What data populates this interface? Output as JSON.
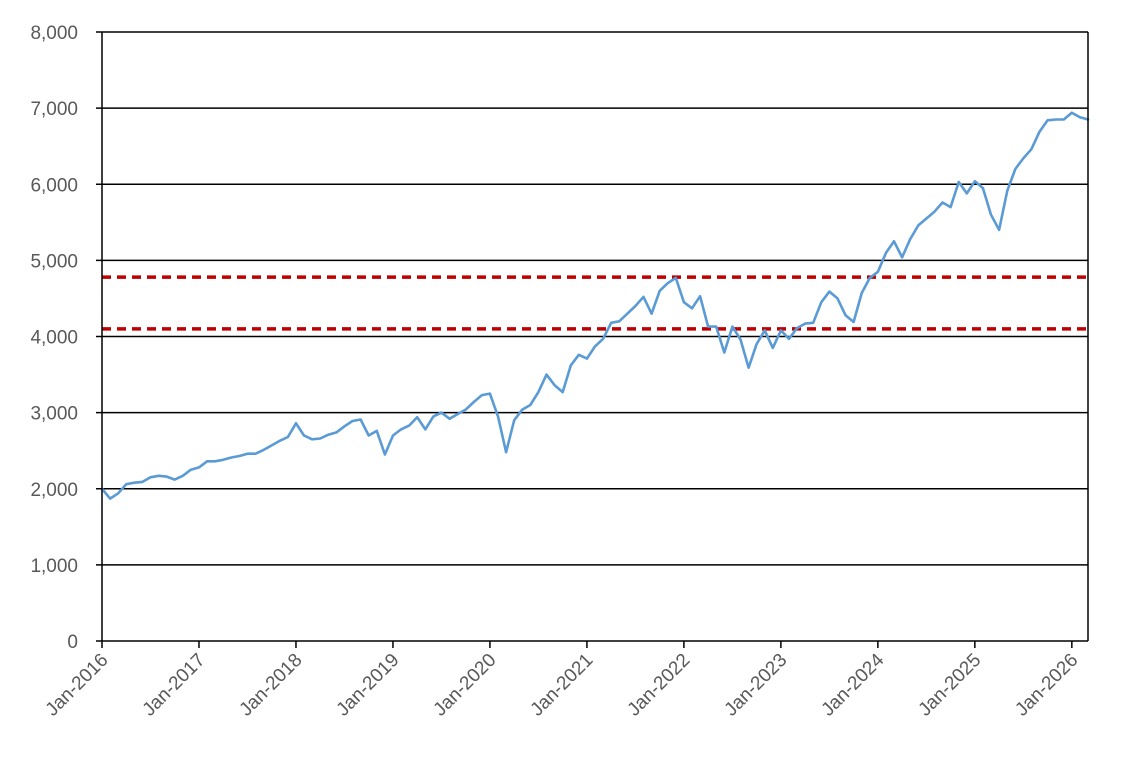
{
  "chart_data": {
    "type": "line",
    "title": "",
    "xlabel": "",
    "ylabel": "",
    "x_range": [
      "2016-01",
      "2026-03"
    ],
    "ylim": [
      0,
      8000
    ],
    "yticks": [
      0,
      1000,
      2000,
      3000,
      4000,
      5000,
      6000,
      7000,
      8000
    ],
    "ytick_labels": [
      "0",
      "1,000",
      "2,000",
      "3,000",
      "4,000",
      "5,000",
      "6,000",
      "7,000",
      "8,000"
    ],
    "xticks": [
      "2016-01",
      "2017-01",
      "2018-01",
      "2019-01",
      "2020-01",
      "2021-01",
      "2022-01",
      "2023-01",
      "2024-01",
      "2025-01",
      "2026-01"
    ],
    "xtick_labels": [
      "Jan-2016",
      "Jan-2017",
      "Jan-2018",
      "Jan-2019",
      "Jan-2020",
      "Jan-2021",
      "Jan-2022",
      "Jan-2023",
      "Jan-2024",
      "Jan-2025",
      "Jan-2026"
    ],
    "grid": "horizontal",
    "legend": "none",
    "colors": {
      "series": "#5b9bd5",
      "reference": "#c00000",
      "grid": "#000000",
      "text": "#595959"
    },
    "reference_lines": [
      {
        "y": 4780,
        "style": "dashed"
      },
      {
        "y": 4100,
        "style": "dashed"
      }
    ],
    "series": [
      {
        "x": [
          "2016-01",
          "2016-02",
          "2016-03",
          "2016-04",
          "2016-05",
          "2016-06",
          "2016-07",
          "2016-08",
          "2016-09",
          "2016-10",
          "2016-11",
          "2016-12",
          "2017-01",
          "2017-02",
          "2017-03",
          "2017-04",
          "2017-05",
          "2017-06",
          "2017-07",
          "2017-08",
          "2017-09",
          "2017-10",
          "2017-11",
          "2017-12",
          "2018-01",
          "2018-02",
          "2018-03",
          "2018-04",
          "2018-05",
          "2018-06",
          "2018-07",
          "2018-08",
          "2018-09",
          "2018-10",
          "2018-11",
          "2018-12",
          "2019-01",
          "2019-02",
          "2019-03",
          "2019-04",
          "2019-05",
          "2019-06",
          "2019-07",
          "2019-08",
          "2019-09",
          "2019-10",
          "2019-11",
          "2019-12",
          "2020-01",
          "2020-02",
          "2020-03",
          "2020-04",
          "2020-05",
          "2020-06",
          "2020-07",
          "2020-08",
          "2020-09",
          "2020-10",
          "2020-11",
          "2020-12",
          "2021-01",
          "2021-02",
          "2021-03",
          "2021-04",
          "2021-05",
          "2021-06",
          "2021-07",
          "2021-08",
          "2021-09",
          "2021-10",
          "2021-11",
          "2021-12",
          "2022-01",
          "2022-02",
          "2022-03",
          "2022-04",
          "2022-05",
          "2022-06",
          "2022-07",
          "2022-08",
          "2022-09",
          "2022-10",
          "2022-11",
          "2022-12",
          "2023-01",
          "2023-02",
          "2023-03",
          "2023-04",
          "2023-05",
          "2023-06",
          "2023-07",
          "2023-08",
          "2023-09",
          "2023-10",
          "2023-11",
          "2023-12",
          "2024-01",
          "2024-02",
          "2024-03",
          "2024-04",
          "2024-05",
          "2024-06",
          "2024-07",
          "2024-08",
          "2024-09",
          "2024-10",
          "2024-11",
          "2024-12",
          "2025-01",
          "2025-02",
          "2025-03",
          "2025-04",
          "2025-05",
          "2025-06",
          "2025-07",
          "2025-08",
          "2025-09",
          "2025-10",
          "2025-11",
          "2025-12",
          "2026-01",
          "2026-02",
          "2026-03"
        ],
        "values": [
          2000,
          1870,
          1940,
          2060,
          2080,
          2090,
          2150,
          2170,
          2160,
          2120,
          2170,
          2250,
          2280,
          2360,
          2360,
          2380,
          2410,
          2430,
          2460,
          2460,
          2510,
          2570,
          2630,
          2680,
          2860,
          2700,
          2650,
          2660,
          2710,
          2740,
          2820,
          2890,
          2910,
          2700,
          2760,
          2450,
          2700,
          2780,
          2830,
          2940,
          2780,
          2950,
          3000,
          2920,
          2980,
          3040,
          3140,
          3230,
          3250,
          2950,
          2480,
          2900,
          3040,
          3100,
          3270,
          3500,
          3360,
          3270,
          3620,
          3760,
          3710,
          3870,
          3970,
          4180,
          4200,
          4300,
          4400,
          4520,
          4300,
          4600,
          4700,
          4770,
          4450,
          4370,
          4530,
          4130,
          4130,
          3790,
          4130,
          3960,
          3590,
          3900,
          4080,
          3850,
          4080,
          3970,
          4110,
          4170,
          4180,
          4450,
          4590,
          4500,
          4280,
          4190,
          4570,
          4770,
          4850,
          5100,
          5250,
          5040,
          5280,
          5460,
          5550,
          5640,
          5760,
          5700,
          6030,
          5880,
          6040,
          5950,
          5600,
          5400,
          5910,
          6200,
          6340,
          6460,
          6690,
          6840,
          6850,
          6850,
          6940,
          6880,
          6850
        ]
      }
    ]
  }
}
